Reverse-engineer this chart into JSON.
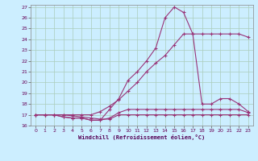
{
  "xlabel": "Windchill (Refroidissement éolien,°C)",
  "bg_color": "#cceeff",
  "grid_color": "#aaccbb",
  "line_color": "#993377",
  "xlim": [
    -0.5,
    23.5
  ],
  "ylim": [
    16,
    27.2
  ],
  "yticks": [
    16,
    17,
    18,
    19,
    20,
    21,
    22,
    23,
    24,
    25,
    26,
    27
  ],
  "xticks": [
    0,
    1,
    2,
    3,
    4,
    5,
    6,
    7,
    8,
    9,
    10,
    11,
    12,
    13,
    14,
    15,
    16,
    17,
    18,
    19,
    20,
    21,
    22,
    23
  ],
  "curves": [
    {
      "x": [
        0,
        1,
        2,
        3,
        4,
        5,
        6,
        7,
        8,
        9,
        10,
        11,
        12,
        13,
        14,
        15,
        16,
        17,
        18,
        19,
        20,
        21,
        22,
        23
      ],
      "y": [
        17,
        17,
        17,
        17,
        16.9,
        16.8,
        16.7,
        16.6,
        16.6,
        17,
        17,
        17,
        17,
        17,
        17,
        17,
        17,
        17,
        17,
        17,
        17,
        17,
        17,
        17
      ]
    },
    {
      "x": [
        0,
        1,
        2,
        3,
        4,
        5,
        6,
        7,
        8,
        9,
        10,
        11,
        12,
        13,
        14,
        15,
        16,
        17,
        18,
        19,
        20,
        21,
        22,
        23
      ],
      "y": [
        17,
        17,
        17,
        16.8,
        16.7,
        16.7,
        16.5,
        16.5,
        16.7,
        17.2,
        17.5,
        17.5,
        17.5,
        17.5,
        17.5,
        17.5,
        17.5,
        17.5,
        17.5,
        17.5,
        17.5,
        17.5,
        17.5,
        17.2
      ]
    },
    {
      "x": [
        0,
        1,
        2,
        3,
        4,
        5,
        6,
        7,
        8,
        9,
        10,
        11,
        12,
        13,
        14,
        15,
        16,
        17,
        18,
        19,
        20,
        21,
        22,
        23
      ],
      "y": [
        17,
        17,
        17,
        16.8,
        16.7,
        16.7,
        16.5,
        16.5,
        17.5,
        18.5,
        20.2,
        21,
        22,
        23.2,
        26,
        27,
        26.5,
        24.5,
        18,
        18,
        18.5,
        18.5,
        18,
        17.3
      ]
    },
    {
      "x": [
        0,
        1,
        2,
        3,
        4,
        5,
        6,
        7,
        8,
        9,
        10,
        11,
        12,
        13,
        14,
        15,
        16,
        17,
        18,
        19,
        20,
        21,
        22,
        23
      ],
      "y": [
        17,
        17,
        17,
        17,
        17,
        17,
        17,
        17.3,
        17.8,
        18.4,
        19.2,
        20,
        21,
        21.8,
        22.5,
        23.5,
        24.5,
        24.5,
        24.5,
        24.5,
        24.5,
        24.5,
        24.5,
        24.2
      ]
    }
  ]
}
